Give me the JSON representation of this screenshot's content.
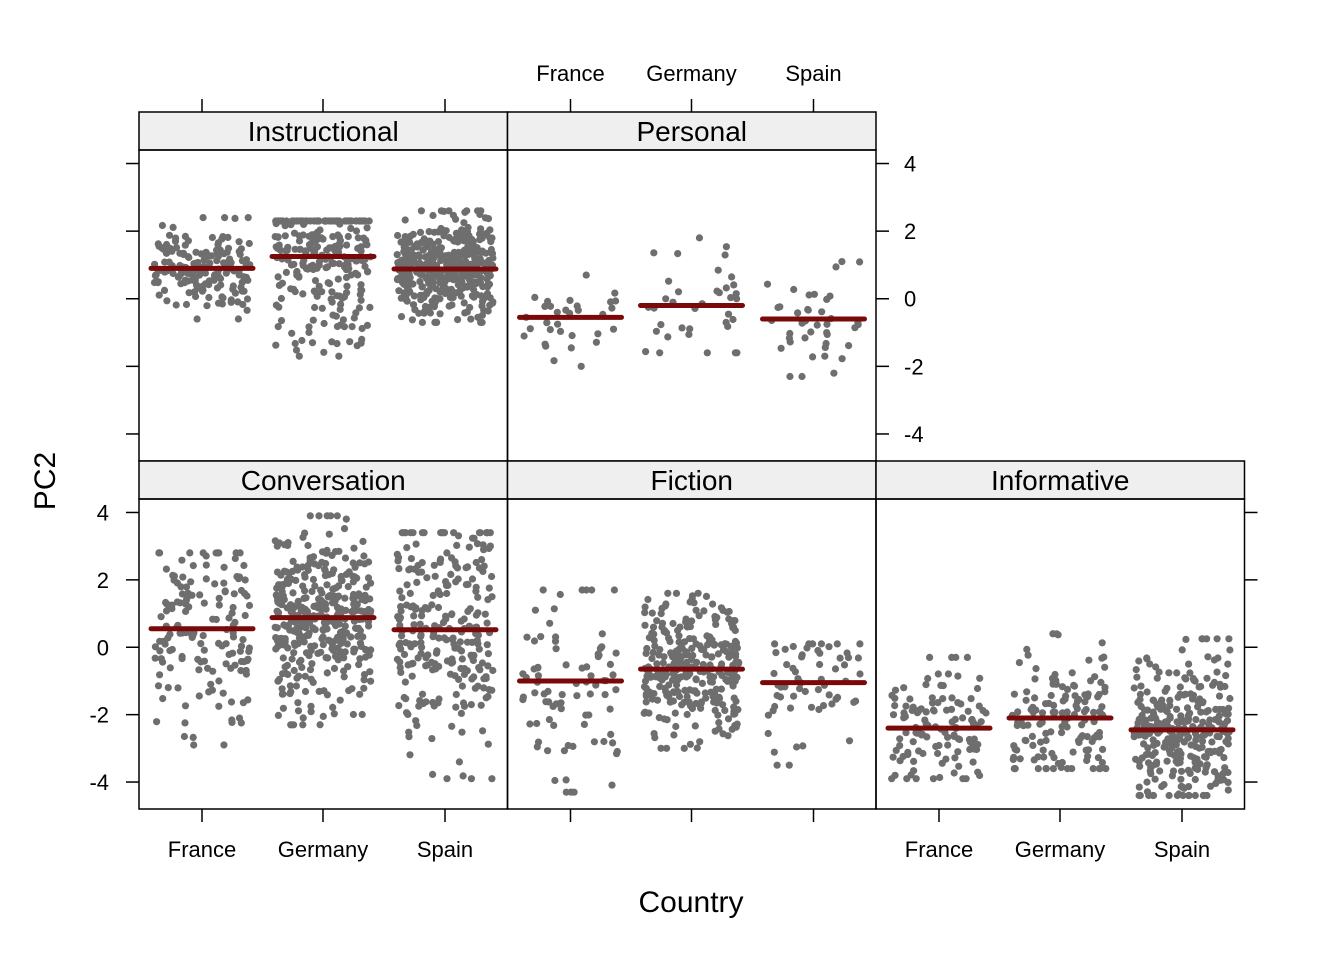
{
  "chart_data": {
    "type": "scatter",
    "subtype": "jittered strip plot, lattice layout",
    "xlabel": "Country",
    "ylabel": "PC2",
    "categories": [
      "France",
      "Germany",
      "Spain"
    ],
    "ylim": [
      -4.8,
      4.4
    ],
    "yticks": [
      -4,
      -2,
      0,
      2,
      4
    ],
    "colors": {
      "points": "#6e6e6e",
      "mean_line": "#7a0a0a",
      "strip_bg": "#efefef",
      "frame": "#000000"
    },
    "panels": [
      {
        "name": "Instructional",
        "means": [
          0.9,
          1.25,
          0.88
        ],
        "spread": [
          [
            -0.6,
            2.4
          ],
          [
            -1.7,
            2.3
          ],
          [
            -0.7,
            2.6
          ]
        ],
        "counts": [
          170,
          260,
          420
        ]
      },
      {
        "name": "Personal",
        "means": [
          -0.55,
          -0.2,
          -0.6
        ],
        "spread": [
          [
            -2.0,
            0.7
          ],
          [
            -1.6,
            1.8
          ],
          [
            -2.3,
            1.1
          ]
        ],
        "counts": [
          30,
          35,
          40
        ]
      },
      {
        "name": "Conversation",
        "means": [
          0.55,
          0.88,
          0.52
        ],
        "spread": [
          [
            -2.9,
            2.8
          ],
          [
            -2.3,
            3.9
          ],
          [
            -3.9,
            3.4
          ]
        ],
        "counts": [
          150,
          380,
          260
        ]
      },
      {
        "name": "Fiction",
        "means": [
          -1.0,
          -0.65,
          -1.05
        ],
        "spread": [
          [
            -4.3,
            1.7
          ],
          [
            -3.0,
            1.6
          ],
          [
            -3.5,
            0.1
          ]
        ],
        "counts": [
          80,
          300,
          60
        ]
      },
      {
        "name": "Informative",
        "means": [
          -2.4,
          -2.1,
          -2.45
        ],
        "spread": [
          [
            -3.9,
            -0.3
          ],
          [
            -3.6,
            0.4
          ],
          [
            -4.4,
            0.25
          ]
        ],
        "counts": [
          120,
          140,
          300
        ]
      }
    ]
  }
}
